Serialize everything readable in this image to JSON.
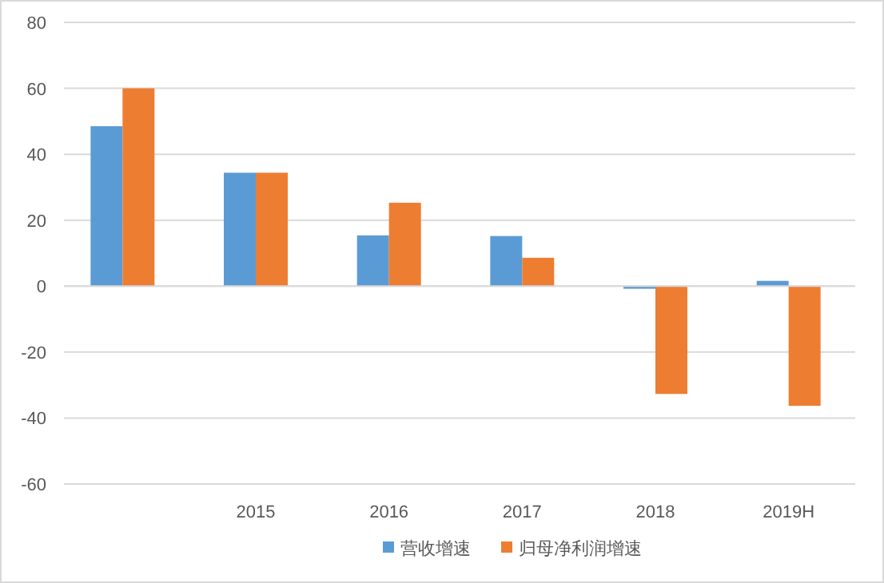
{
  "chart_data": {
    "type": "bar",
    "categories": [
      null,
      "2015",
      "2016",
      "2017",
      "2018",
      "2019H"
    ],
    "series": [
      {
        "name": "营收增速",
        "color": "#5b9bd5",
        "values": [
          48.5,
          34.4,
          15.4,
          15.2,
          -0.8,
          1.6
        ]
      },
      {
        "name": "归母净利润增速",
        "color": "#ed7d31",
        "values": [
          60,
          34.4,
          25.3,
          8.6,
          -32.7,
          -36.3
        ]
      }
    ],
    "ylim": [
      -60,
      80
    ],
    "yticks": [
      -60,
      -40,
      -20,
      0,
      20,
      40,
      60,
      80
    ],
    "grid": "y",
    "legend": "bottom"
  }
}
